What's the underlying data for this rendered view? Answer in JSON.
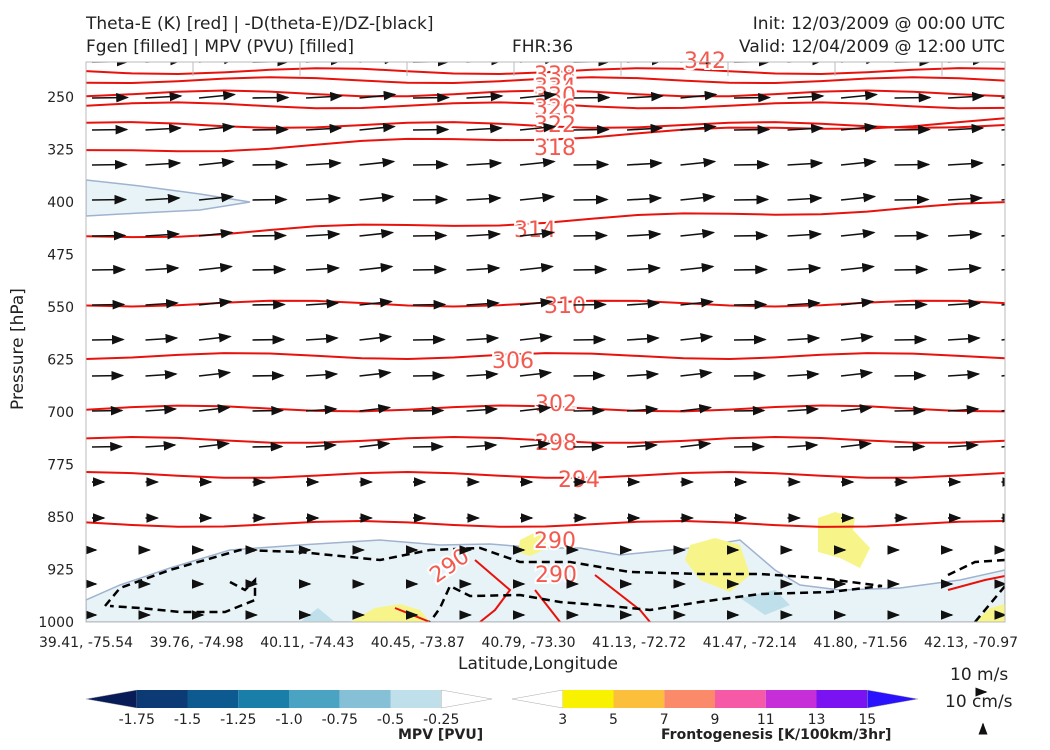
{
  "header": {
    "line1_left": "Theta-E (K) [red] | -D(theta-E)/DZ-[black]",
    "line2_left": "Fgen [filled] | MPV (PVU) [filled]",
    "fhr": "FHR:36",
    "init": "Init: 12/03/2009 @ 00:00 UTC",
    "valid": "Valid: 12/04/2009 @ 12:00 UTC"
  },
  "chart_data": {
    "type": "cross-section",
    "xlabel": "Latitude,Longitude",
    "ylabel": "Pressure [hPa]",
    "y_scale": "pressure (inverted)",
    "ylim": [
      1000,
      200
    ],
    "y_ticks": [
      250,
      325,
      400,
      475,
      550,
      625,
      700,
      775,
      850,
      925,
      1000
    ],
    "x_ticks": [
      "39.41, -75.54",
      "39.76, -74.98",
      "40.11, -74.43",
      "40.45, -73.87",
      "40.79, -73.30",
      "41.13, -72.72",
      "41.47, -72.14",
      "41.80, -71.56",
      "42.13, -70.97"
    ],
    "theta_e_labels": [
      342,
      338,
      334,
      330,
      326,
      322,
      318,
      314,
      310,
      306,
      302,
      298,
      294,
      290,
      290,
      290
    ],
    "theta_e_levels": [
      {
        "value": 338,
        "p": 213
      },
      {
        "value": 334,
        "p": 226
      },
      {
        "value": 330,
        "p": 245
      },
      {
        "value": 326,
        "p": 262
      },
      {
        "value": 322,
        "p": 290
      },
      {
        "value": 318,
        "p": 330
      },
      {
        "value": 314,
        "p": 450
      },
      {
        "value": 310,
        "p": 545
      },
      {
        "value": 306,
        "p": 620
      },
      {
        "value": 302,
        "p": 695
      },
      {
        "value": 298,
        "p": 740
      },
      {
        "value": 294,
        "p": 790
      },
      {
        "value": 290,
        "p": 860
      }
    ],
    "wind_reference": {
      "horizontal": "10 m/s",
      "vertical": "10 cm/s"
    },
    "colorbars": [
      {
        "title": "MPV [PVU]",
        "ticks": [
          "-1.75",
          "-1.5",
          "-1.25",
          "-1.0",
          "-0.75",
          "-0.5",
          "-0.25"
        ],
        "colors": [
          "#081d58",
          "#0b3a75",
          "#0d5a91",
          "#1a7fa8",
          "#4aa3c2",
          "#86c0d6",
          "#bfe0ea",
          "#ffffff"
        ]
      },
      {
        "title": "Frontogenesis [K/100km/3hr]",
        "ticks": [
          "3",
          "5",
          "7",
          "9",
          "11",
          "13",
          "15"
        ],
        "colors": [
          "#ffffff",
          "#f8f200",
          "#fcbf3c",
          "#fb8a6a",
          "#f65aa6",
          "#c62ed8",
          "#7a12f2",
          "#2a12ff"
        ]
      }
    ]
  }
}
